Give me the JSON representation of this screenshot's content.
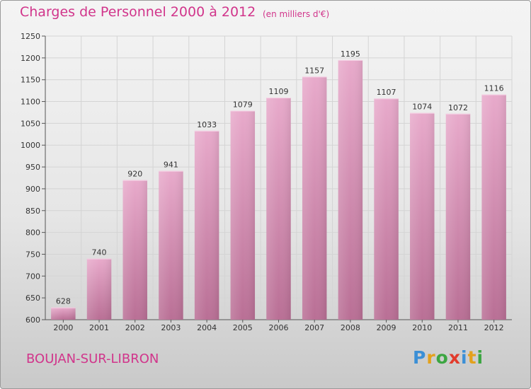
{
  "header": {
    "title": "Charges de Personnel 2000 à 2012",
    "unit": "(en milliers d'€)"
  },
  "footer": {
    "commune": "BOUJAN-SUR-LIBRON",
    "logo_text": "Proxiti"
  },
  "colors": {
    "title": "#d1358b",
    "bar_top": "#e8aacb",
    "bar_bottom": "#b96f95"
  },
  "chart_data": {
    "type": "bar",
    "title": "Charges de Personnel 2000 à 2012",
    "xlabel": "",
    "ylabel": "",
    "categories": [
      "2000",
      "2001",
      "2002",
      "2003",
      "2004",
      "2005",
      "2006",
      "2007",
      "2008",
      "2009",
      "2010",
      "2011",
      "2012"
    ],
    "values": [
      628,
      740,
      920,
      941,
      1033,
      1079,
      1109,
      1157,
      1195,
      1107,
      1074,
      1072,
      1116
    ],
    "ylim": [
      600,
      1250
    ],
    "yticks": [
      600,
      650,
      700,
      750,
      800,
      850,
      900,
      950,
      1000,
      1050,
      1100,
      1150,
      1200,
      1250
    ],
    "grid": true,
    "legend": "none"
  }
}
